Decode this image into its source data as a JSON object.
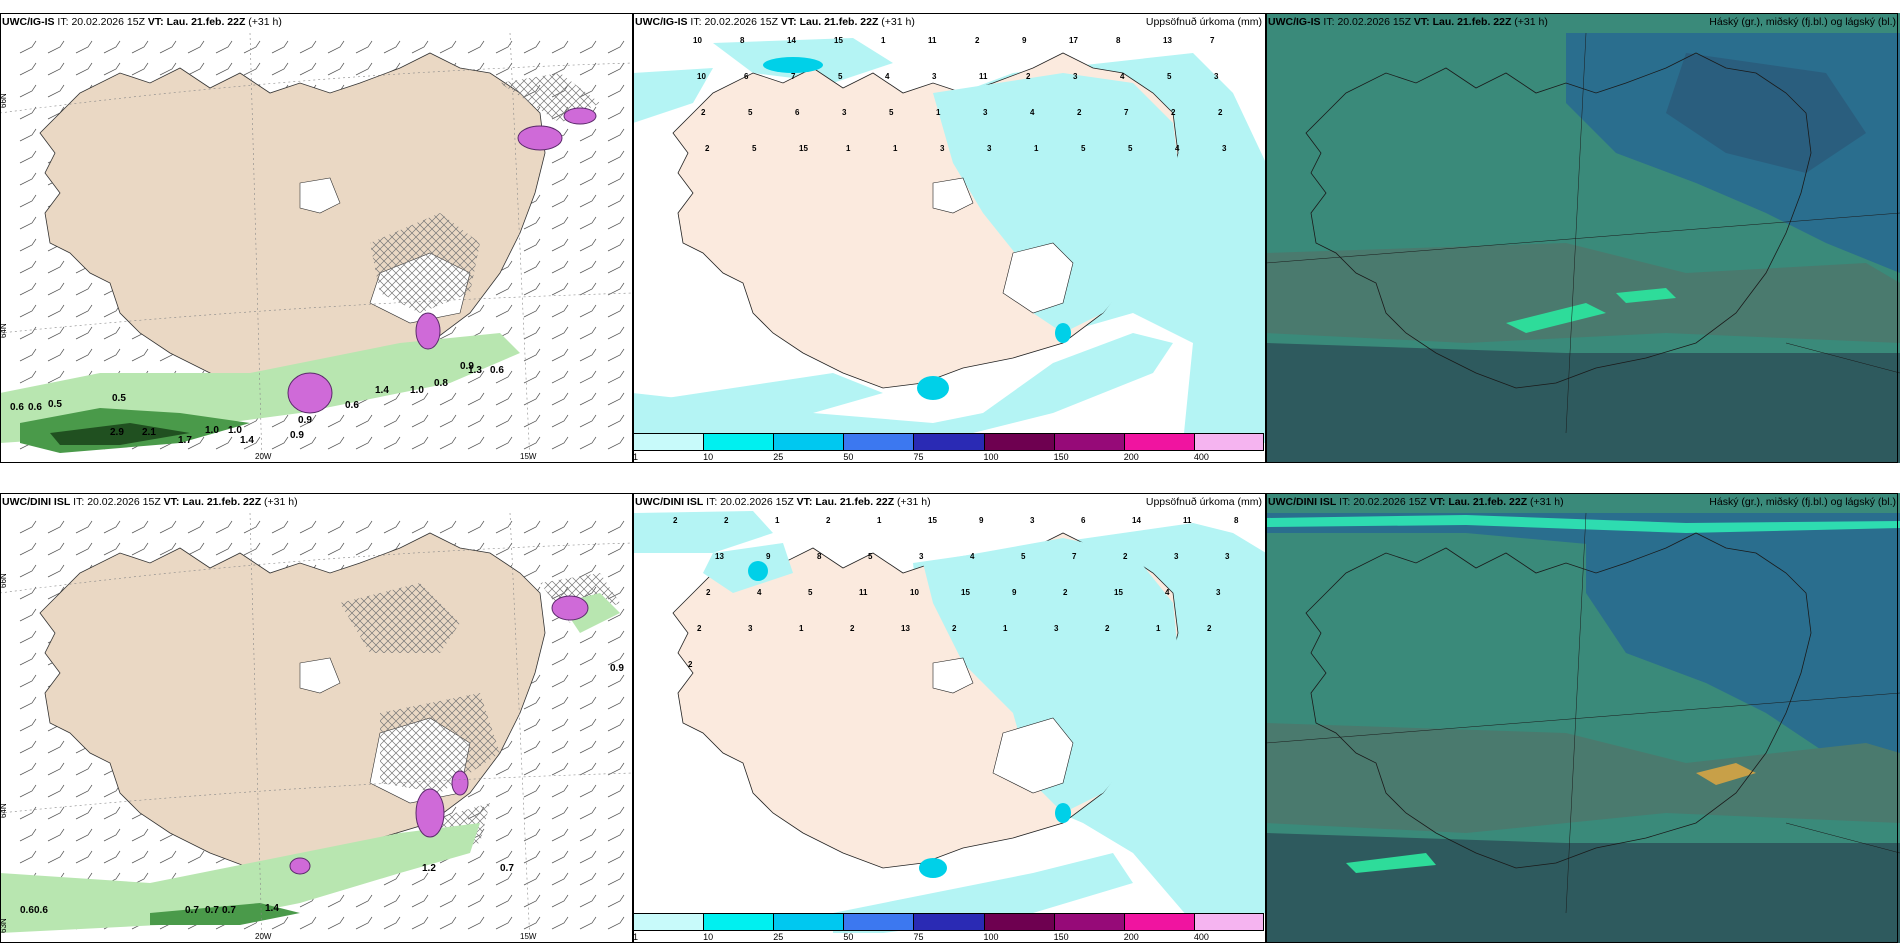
{
  "rows": [
    {
      "wind": {
        "model": "UWC/IG-IS",
        "it_label": "IT:",
        "it": "20.02.2026 15Z",
        "vt_label": "VT:",
        "vt": "Lau. 21.feb. 22Z",
        "lead": "(+31 h)",
        "right_title": ""
      },
      "precip": {
        "model": "UWC/IG-IS",
        "it_label": "IT:",
        "it": "20.02.2026 15Z",
        "vt_label": "VT:",
        "vt": "Lau. 21.feb. 22Z",
        "lead": "(+31 h)",
        "right_title": "Uppsöfnuð úrkoma (mm)"
      },
      "cloud": {
        "model": "UWC/IG-IS",
        "it_label": "IT:",
        "it": "20.02.2026 15Z",
        "vt_label": "VT:",
        "vt": "Lau. 21.feb. 22Z",
        "lead": "(+31 h)",
        "right_title": "Háský (gr.), miðský (fj.bl.) og lágský (bl.)"
      }
    },
    {
      "wind": {
        "model": "UWC/DINI ISL",
        "it_label": "IT:",
        "it": "20.02.2026 15Z",
        "vt_label": "VT:",
        "vt": "Lau. 21.feb. 22Z",
        "lead": "(+31 h)",
        "right_title": ""
      },
      "precip": {
        "model": "UWC/DINI ISL",
        "it_label": "IT:",
        "it": "20.02.2026 15Z",
        "vt_label": "VT:",
        "vt": "Lau. 21.feb. 22Z",
        "lead": "(+31 h)",
        "right_title": "Uppsöfnuð úrkoma (mm)"
      },
      "cloud": {
        "model": "UWC/DINI ISL",
        "it_label": "IT:",
        "it": "20.02.2026 15Z",
        "vt_label": "VT:",
        "vt": "Lau. 21.feb. 22Z",
        "lead": "(+31 h)",
        "right_title": "Háský (gr.), miðský (fj.bl.) og lágský (bl.)"
      }
    }
  ],
  "grid_labels": {
    "lat66": "66N",
    "lat64": "64N",
    "lat63": "63N",
    "lon20": "20W",
    "lon15": "15W"
  },
  "precip_colorbar": {
    "colors": [
      "#c8fafa",
      "#00f0f0",
      "#00c8f0",
      "#3c78f0",
      "#2a2ab4",
      "#6e0050",
      "#960a78",
      "#f014a0",
      "#f5b4f0"
    ],
    "ticks": [
      "1",
      "10",
      "25",
      "50",
      "75",
      "100",
      "150",
      "200",
      "400"
    ]
  },
  "wind_labels_top": [
    "0.6",
    "0.6",
    "0.5",
    "0.5",
    "2.9",
    "2.1",
    "1.7",
    "1.0",
    "1.0",
    "1.4",
    "0.9",
    "0.9",
    "0.6",
    "1.4",
    "1.0",
    "0.8",
    "0.9",
    "1.3",
    "0.6"
  ],
  "wind_labels_bottom": [
    "0.6",
    "0.6",
    "0.7",
    "0.7",
    "0.7",
    "1.4",
    "1.2",
    "0.7",
    "0.9"
  ],
  "precip_labels_top": [
    "10",
    "8",
    "14",
    "15",
    "1",
    "11",
    "2",
    "9",
    "17",
    "8",
    "13",
    "7",
    "10",
    "6",
    "7",
    "5",
    "4",
    "3",
    "11",
    "2",
    "3",
    "4",
    "5",
    "3",
    "2",
    "5",
    "6",
    "3",
    "5",
    "1",
    "3",
    "4",
    "2",
    "7",
    "2",
    "2",
    "2",
    "5",
    "15",
    "1",
    "1",
    "3",
    "3",
    "1",
    "5",
    "5",
    "4",
    "3"
  ],
  "precip_labels_bottom": [
    "2",
    "2",
    "1",
    "2",
    "1",
    "15",
    "9",
    "3",
    "6",
    "14",
    "11",
    "8",
    "13",
    "9",
    "8",
    "5",
    "3",
    "4",
    "5",
    "7",
    "2",
    "3",
    "3",
    "2",
    "4",
    "5",
    "11",
    "10",
    "15",
    "9",
    "2",
    "15",
    "4",
    "3",
    "2",
    "3",
    "1",
    "2",
    "13",
    "2",
    "1",
    "3",
    "2",
    "1",
    "2",
    "2"
  ]
}
